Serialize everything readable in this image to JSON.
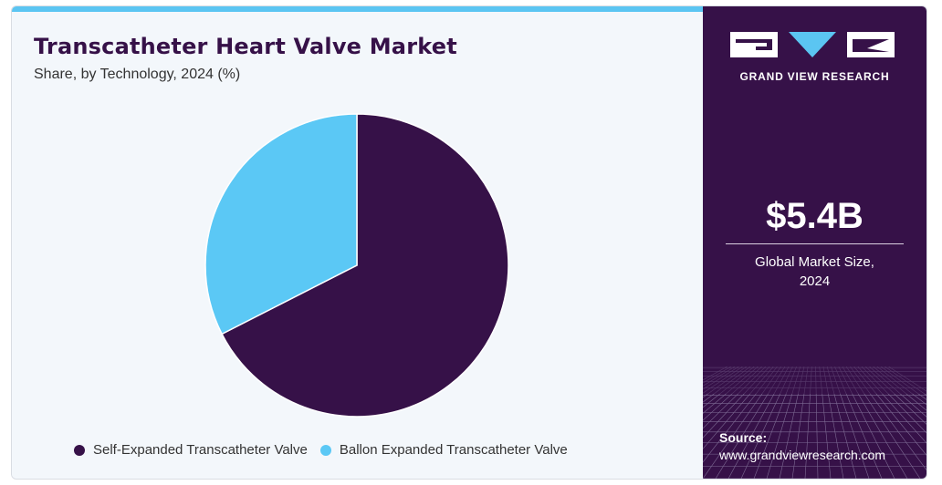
{
  "title": "Transcatheter Heart Valve Market",
  "subtitle": "Share, by Technology, 2024 (%)",
  "colors": {
    "self_expanded": "#361148",
    "ballon_expanded": "#5bc8f5",
    "panel_bg": "#361148",
    "accent": "#5bc5f2"
  },
  "chart_data": {
    "type": "pie",
    "title": "Transcatheter Heart Valve Market",
    "subtitle": "Share, by Technology, 2024 (%)",
    "start_angle_deg": 0,
    "direction": "clockwise",
    "slices": [
      {
        "label": "Self-Expanded Transcatheter Valve",
        "value": 67.5,
        "color": "#361148"
      },
      {
        "label": "Ballon Expanded Transcatheter Valve",
        "value": 32.5,
        "color": "#5bc8f5"
      }
    ],
    "legend_position": "bottom"
  },
  "sidebar": {
    "brand": "GRAND VIEW RESEARCH",
    "market_size_value": "$5.4B",
    "market_size_label_line1": "Global Market Size,",
    "market_size_label_line2": "2024",
    "source_label": "Source:",
    "source_url": "www.grandviewresearch.com"
  }
}
